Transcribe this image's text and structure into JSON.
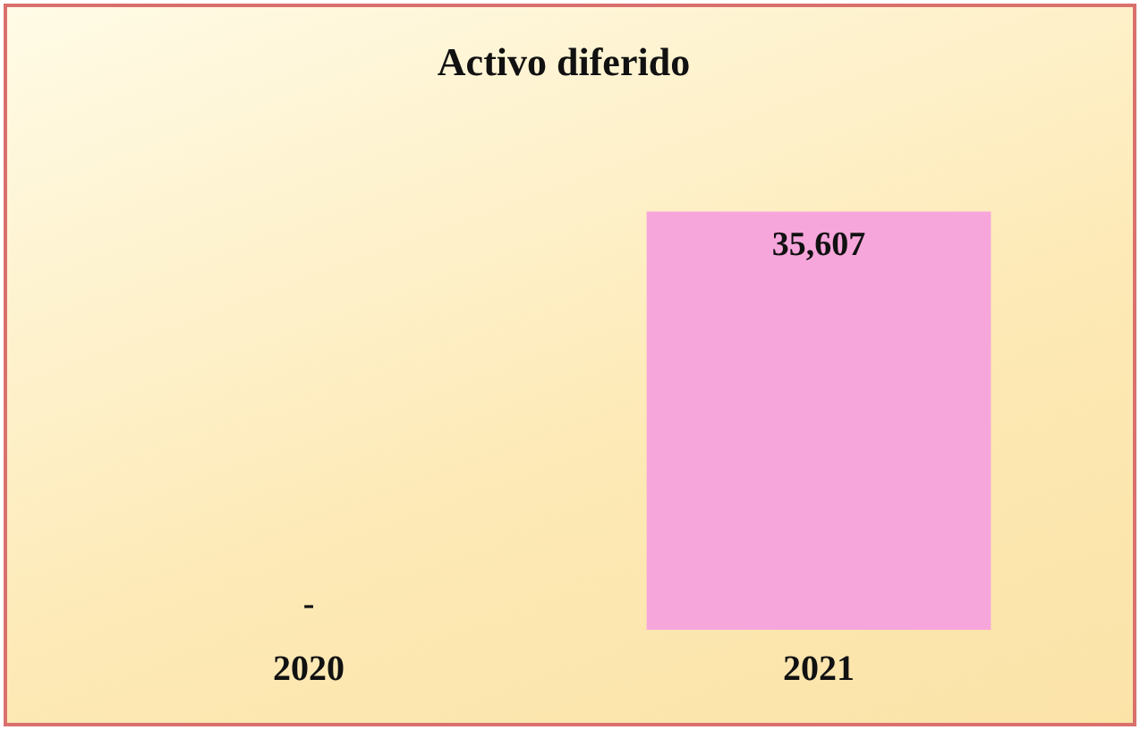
{
  "chart_data": {
    "type": "bar",
    "title": "Activo diferido",
    "categories": [
      "2020",
      "2021"
    ],
    "values": [
      0,
      35607
    ],
    "color": "#f7a6dc",
    "value_labels": [
      "-",
      "35,607"
    ],
    "grid": false,
    "legend": false
  }
}
